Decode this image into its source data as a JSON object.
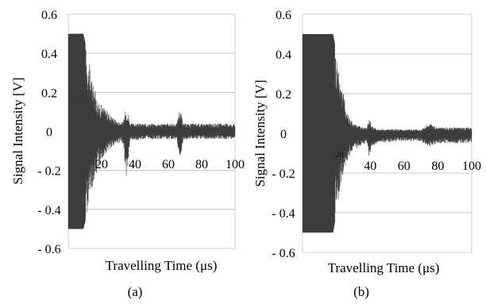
{
  "chart_data": [
    {
      "type": "line",
      "panel_label": "(a)",
      "xlabel": "Travelling Time (μs)",
      "ylabel": "Signal Intensity  [V]",
      "xlim": [
        0,
        100
      ],
      "ylim": [
        -0.6,
        0.6
      ],
      "x_ticks": [
        20,
        40,
        60,
        80,
        100
      ],
      "y_ticks": [
        0.6,
        0.4,
        0.2,
        0,
        -0.2,
        -0.4,
        -0.6
      ],
      "y_tick_labels": [
        "0.6",
        "0.4",
        "0.2",
        "0",
        "- 0.2",
        "- 0.4",
        "- 0.6"
      ],
      "grid": "horizontal",
      "inner_x_labels": [],
      "envelope": {
        "t": [
          0,
          1,
          9,
          12,
          14,
          18,
          22,
          26,
          30,
          33,
          34.5,
          35.5,
          37,
          45,
          60,
          65,
          66.5,
          67.5,
          69,
          80,
          100
        ],
        "upper": [
          0.5,
          0.5,
          0.5,
          0.38,
          0.28,
          0.15,
          0.12,
          0.08,
          0.05,
          0.05,
          0.12,
          0.11,
          0.04,
          0.04,
          0.04,
          0.04,
          0.11,
          0.1,
          0.04,
          0.04,
          0.04
        ],
        "lower": [
          -0.5,
          -0.5,
          -0.5,
          -0.4,
          -0.3,
          -0.18,
          -0.12,
          -0.08,
          -0.06,
          -0.06,
          -0.25,
          -0.22,
          -0.05,
          -0.04,
          -0.04,
          -0.04,
          -0.13,
          -0.12,
          -0.04,
          -0.04,
          -0.04
        ]
      }
    },
    {
      "type": "line",
      "panel_label": "(b)",
      "xlabel": "Travelling Time (μs)",
      "ylabel": "Signal Intensity  [V]",
      "xlim": [
        0,
        100
      ],
      "ylim": [
        -0.6,
        0.6
      ],
      "x_ticks": [
        40,
        60,
        80,
        100
      ],
      "y_ticks": [
        0.6,
        0.4,
        0.2,
        0,
        -0.2,
        -0.4,
        -0.6
      ],
      "y_tick_labels": [
        "0.6",
        "0.4",
        "0.2",
        "0",
        "- 0.2",
        "- 0.4",
        "- 0.6"
      ],
      "grid": "horizontal",
      "inner_x_labels": [
        {
          "x": 20,
          "label": "20"
        }
      ],
      "envelope": {
        "t": [
          0,
          1,
          18,
          22,
          26,
          30,
          36,
          38,
          39.5,
          41,
          44,
          55,
          70,
          75,
          80,
          100
        ],
        "upper": [
          0.5,
          0.5,
          0.5,
          0.32,
          0.12,
          0.05,
          0.03,
          0.03,
          0.08,
          0.04,
          0.02,
          0.02,
          0.02,
          0.05,
          0.03,
          0.03
        ],
        "lower": [
          -0.5,
          -0.5,
          -0.5,
          -0.3,
          -0.15,
          -0.08,
          -0.06,
          -0.06,
          -0.13,
          -0.07,
          -0.05,
          -0.04,
          -0.04,
          -0.07,
          -0.05,
          -0.05
        ]
      }
    }
  ]
}
